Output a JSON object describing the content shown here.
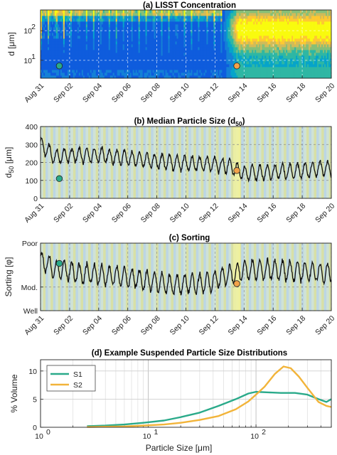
{
  "chart_data": [
    {
      "id": "a",
      "type": "heatmap",
      "title": "(a) LISST Concentration",
      "ylabel": "d [μm]",
      "yscale": "log",
      "ylim": [
        2.5,
        500
      ],
      "yticks": [
        {
          "v": 10,
          "label": "10",
          "sup": "1"
        },
        {
          "v": 100,
          "label": "10",
          "sup": "2"
        }
      ],
      "xlim": [
        "2023-08-31",
        "2023-09-20"
      ],
      "xtick_labels": [
        "Aug 31",
        "Sep 02",
        "Sep 04",
        "Sep 06",
        "Sep 08",
        "Sep 10",
        "Sep 12",
        "Sep 14",
        "Sep 16",
        "Sep 18",
        "Sep 20"
      ],
      "grid": true,
      "markers": [
        {
          "name": "S1",
          "x": "2023-09-01 07:00",
          "y": 6.5,
          "color": "#2aaa8a"
        },
        {
          "name": "S2",
          "x": "2023-09-13 12:00",
          "y": 6.5,
          "color": "#f2a24a"
        }
      ],
      "colors": [
        "#352a87",
        "#0f5cdd",
        "#1481d6",
        "#06a4ca",
        "#2eb7a4",
        "#87bf77",
        "#d1bb59",
        "#fec832",
        "#f9fb0e"
      ]
    },
    {
      "id": "b",
      "type": "line",
      "title": "(b) Median Particle Size (d",
      "title_sub": "50",
      "title_end": ")",
      "ylabel": "d",
      "ylabel_sub": "50",
      "ylabel_unit": " [μm]",
      "ylim": [
        0,
        400
      ],
      "yticks": [
        0,
        100,
        200,
        300,
        400
      ],
      "xlim": [
        "2023-08-31",
        "2023-09-20"
      ],
      "xtick_labels": [
        "Aug 31",
        "Sep 02",
        "Sep 04",
        "Sep 06",
        "Sep 08",
        "Sep 10",
        "Sep 12",
        "Sep 14",
        "Sep 16",
        "Sep 18",
        "Sep 20"
      ],
      "grid": true,
      "trend_days": [
        0,
        1,
        2,
        4,
        6,
        8,
        10,
        12,
        13,
        14,
        16,
        18,
        20
      ],
      "trend_values": [
        300,
        230,
        240,
        240,
        225,
        205,
        195,
        190,
        180,
        140,
        145,
        155,
        170
      ],
      "tidal_amplitude": 40,
      "markers": [
        {
          "name": "S1",
          "x": "2023-09-01 07:00",
          "y": 110,
          "color": "#2aaa8a"
        },
        {
          "name": "S2",
          "x": "2023-09-13 12:00",
          "y": 155,
          "color": "#f2a24a"
        }
      ],
      "bands": {
        "period_days": 0.5175,
        "colors": [
          "#cfe2d6",
          "#d8e0a6",
          "#bcd6e4"
        ],
        "highlight_day": 13.5,
        "highlight_color": "#f2f29a"
      }
    },
    {
      "id": "c",
      "type": "line",
      "title": "(c) Sorting",
      "ylabel": "Sorting [φ]",
      "ylim": [
        0,
        1
      ],
      "ytick_labels": [
        {
          "v": 1,
          "label": "Poor"
        },
        {
          "v": 0.35,
          "label": "Mod."
        },
        {
          "v": 0,
          "label": "Well"
        }
      ],
      "xlim": [
        "2023-08-31",
        "2023-09-20"
      ],
      "xtick_labels": [
        "Aug 31",
        "Sep 02",
        "Sep 04",
        "Sep 06",
        "Sep 08",
        "Sep 10",
        "Sep 12",
        "Sep 14",
        "Sep 16",
        "Sep 18",
        "Sep 20"
      ],
      "grid": true,
      "trend_days": [
        0,
        1,
        3,
        6,
        9,
        11,
        12,
        14,
        16,
        18,
        20
      ],
      "trend_values": [
        0.75,
        0.62,
        0.55,
        0.5,
        0.38,
        0.4,
        0.45,
        0.6,
        0.6,
        0.58,
        0.55
      ],
      "tidal_amplitude": 0.14,
      "markers": [
        {
          "name": "S1",
          "x": "2023-09-01 07:00",
          "y": 0.7,
          "color": "#2aaa8a"
        },
        {
          "name": "S2",
          "x": "2023-09-13 12:00",
          "y": 0.4,
          "color": "#f2a24a"
        }
      ],
      "bands": {
        "period_days": 0.5175,
        "colors": [
          "#cfe2d6",
          "#d8e0a6",
          "#bcd6e4"
        ],
        "highlight_day": 13.5,
        "highlight_color": "#f2f29a"
      }
    },
    {
      "id": "d",
      "type": "line",
      "title": "(d) Example Suspended Particle Size Distributions",
      "xlabel": "Particle Size [μm]",
      "ylabel": "% Volume",
      "xscale": "log",
      "xlim": [
        1,
        500
      ],
      "ylim": [
        0,
        12
      ],
      "yticks": [
        0,
        5,
        10
      ],
      "xticks": [
        {
          "v": 1,
          "label": "10",
          "sup": "0"
        },
        {
          "v": 10,
          "label": "10",
          "sup": "1"
        },
        {
          "v": 100,
          "label": "10",
          "sup": "2"
        }
      ],
      "grid": true,
      "legend": "top-left",
      "series": [
        {
          "name": "S1",
          "color": "#2aaa8a",
          "x": [
            2.7,
            4,
            6,
            9,
            14,
            20,
            30,
            45,
            65,
            85,
            100,
            130,
            170,
            230,
            300,
            380,
            450,
            500
          ],
          "y": [
            0.2,
            0.3,
            0.5,
            0.8,
            1.2,
            1.8,
            2.6,
            3.8,
            5.0,
            6.0,
            6.3,
            6.2,
            6.1,
            6.1,
            5.8,
            5.0,
            4.5,
            5.0
          ]
        },
        {
          "name": "S2",
          "color": "#f2b43a",
          "x": [
            2.7,
            4,
            6,
            9,
            14,
            20,
            30,
            45,
            65,
            85,
            100,
            120,
            150,
            180,
            210,
            250,
            300,
            380,
            450,
            500
          ],
          "y": [
            0.05,
            0.1,
            0.15,
            0.3,
            0.5,
            0.8,
            1.3,
            2.0,
            3.2,
            4.6,
            5.8,
            7.2,
            9.5,
            10.8,
            10.5,
            9.0,
            7.0,
            4.5,
            3.8,
            3.6
          ]
        }
      ]
    }
  ]
}
